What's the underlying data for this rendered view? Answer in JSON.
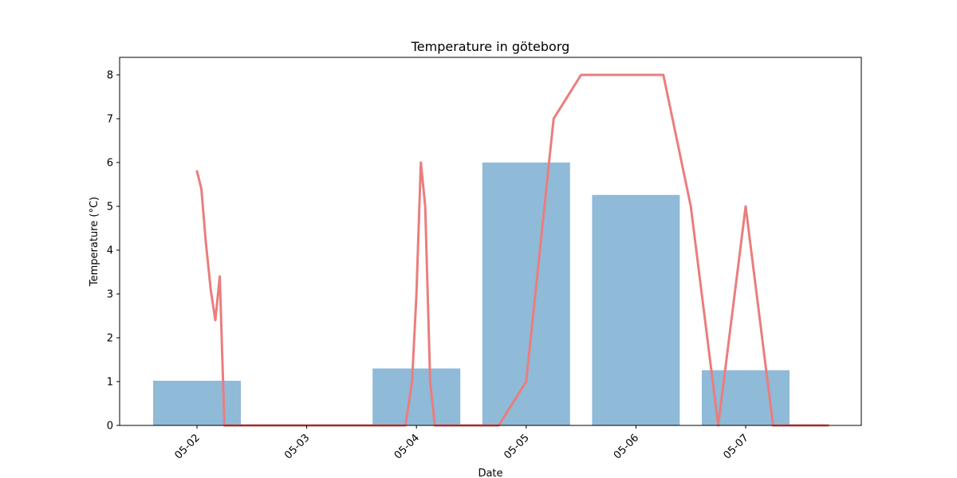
{
  "chart_data": {
    "type": "bar",
    "title": "Temperature in göteborg",
    "xlabel": "Date",
    "ylabel": "Temperature (°C)",
    "categories": [
      "05-02",
      "05-03",
      "05-04",
      "05-05",
      "05-06",
      "05-07"
    ],
    "ylim": [
      0,
      8.4
    ],
    "yticks": [
      0,
      1,
      2,
      3,
      4,
      5,
      6,
      7,
      8
    ],
    "grid": false,
    "bars": {
      "color": "#8fbad8",
      "values": [
        1.02,
        0,
        1.3,
        6.0,
        5.26,
        1.26
      ]
    },
    "line": {
      "color": "#eb7d7d",
      "points": [
        {
          "day": 0.0,
          "value": 5.8
        },
        {
          "day": 0.04,
          "value": 5.4
        },
        {
          "day": 0.08,
          "value": 4.2
        },
        {
          "day": 0.125,
          "value": 3.1
        },
        {
          "day": 0.167,
          "value": 2.4
        },
        {
          "day": 0.208,
          "value": 3.4
        },
        {
          "day": 0.25,
          "value": 0.0
        },
        {
          "day": 1.0,
          "value": 0.0
        },
        {
          "day": 1.9,
          "value": 0.0
        },
        {
          "day": 1.96,
          "value": 1.0
        },
        {
          "day": 2.0,
          "value": 3.0
        },
        {
          "day": 2.04,
          "value": 6.0
        },
        {
          "day": 2.08,
          "value": 5.0
        },
        {
          "day": 2.125,
          "value": 1.0
        },
        {
          "day": 2.167,
          "value": 0.0
        },
        {
          "day": 2.5,
          "value": 0.0
        },
        {
          "day": 2.75,
          "value": 0.0
        },
        {
          "day": 3.0,
          "value": 1.0
        },
        {
          "day": 3.125,
          "value": 4.0
        },
        {
          "day": 3.25,
          "value": 7.0
        },
        {
          "day": 3.5,
          "value": 8.0
        },
        {
          "day": 4.25,
          "value": 8.0
        },
        {
          "day": 4.5,
          "value": 5.0
        },
        {
          "day": 4.75,
          "value": 0.0
        },
        {
          "day": 5.0,
          "value": 5.0
        },
        {
          "day": 5.25,
          "value": 0.0
        },
        {
          "day": 5.75,
          "value": 0.0
        }
      ]
    }
  }
}
